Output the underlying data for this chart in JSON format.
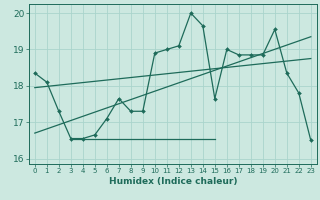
{
  "bg_color": "#cce8e0",
  "line_color": "#1e6b5a",
  "grid_color": "#aad4cc",
  "xlabel": "Humidex (Indice chaleur)",
  "xlim": [
    -0.5,
    23.5
  ],
  "ylim": [
    15.85,
    20.25
  ],
  "yticks": [
    16,
    17,
    18,
    19,
    20
  ],
  "xticks": [
    0,
    1,
    2,
    3,
    4,
    5,
    6,
    7,
    8,
    9,
    10,
    11,
    12,
    13,
    14,
    15,
    16,
    17,
    18,
    19,
    20,
    21,
    22,
    23
  ],
  "series1_x": [
    0,
    1,
    2,
    3,
    4,
    5,
    6,
    7,
    8,
    9,
    10,
    11,
    12,
    13,
    14,
    15,
    16,
    17,
    18,
    19,
    20,
    21,
    22,
    23
  ],
  "series1_y": [
    18.35,
    18.1,
    17.3,
    16.55,
    16.55,
    16.65,
    17.1,
    17.65,
    17.3,
    17.3,
    18.9,
    19.0,
    19.1,
    20.0,
    19.65,
    17.65,
    19.0,
    18.85,
    18.85,
    18.85,
    19.55,
    18.35,
    17.8,
    16.5
  ],
  "line2_x": [
    0,
    23
  ],
  "line2_y": [
    17.95,
    18.75
  ],
  "line3_x": [
    3,
    15
  ],
  "line3_y": [
    16.55,
    16.55
  ],
  "line4_x": [
    0,
    23
  ],
  "line4_y": [
    16.7,
    19.35
  ]
}
